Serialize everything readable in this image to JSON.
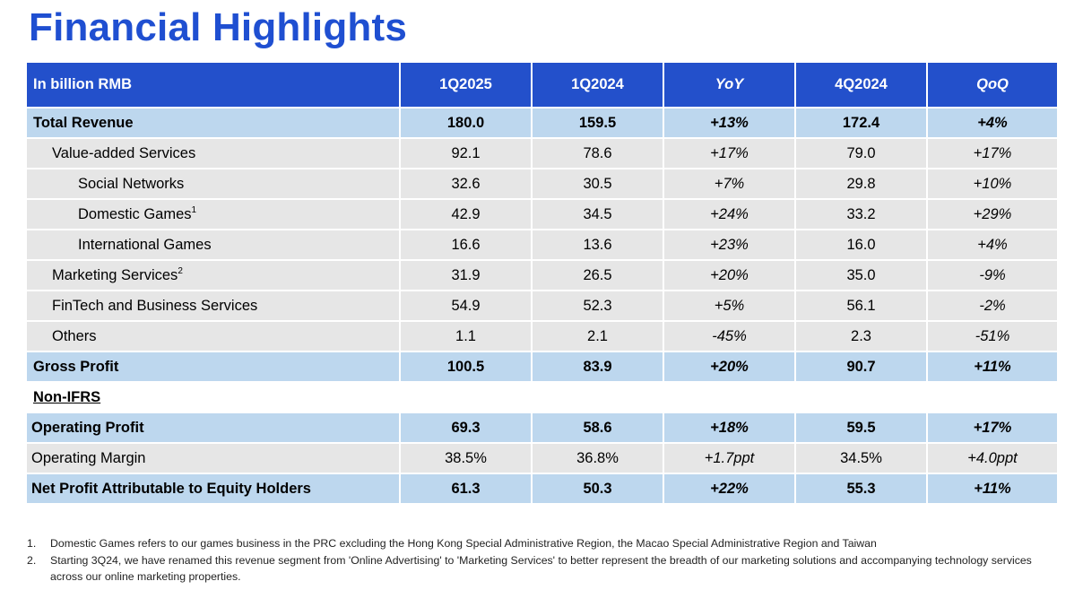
{
  "title": "Financial Highlights",
  "table": {
    "headers": [
      "In billion RMB",
      "1Q2025",
      "1Q2024",
      "YoY",
      "4Q2024",
      "QoQ"
    ],
    "rows": [
      {
        "label": "Total Revenue",
        "sup": "",
        "values": [
          "180.0",
          "159.5",
          "+13%",
          "172.4",
          "+4%"
        ]
      },
      {
        "label": "Value-added Services",
        "sup": "",
        "values": [
          "92.1",
          "78.6",
          "+17%",
          "79.0",
          "+17%"
        ]
      },
      {
        "label": "Social Networks",
        "sup": "",
        "values": [
          "32.6",
          "30.5",
          "+7%",
          "29.8",
          "+10%"
        ]
      },
      {
        "label": "Domestic Games",
        "sup": "1",
        "values": [
          "42.9",
          "34.5",
          "+24%",
          "33.2",
          "+29%"
        ]
      },
      {
        "label": "International Games",
        "sup": "",
        "values": [
          "16.6",
          "13.6",
          "+23%",
          "16.0",
          "+4%"
        ]
      },
      {
        "label": "Marketing Services",
        "sup": "2",
        "values": [
          "31.9",
          "26.5",
          "+20%",
          "35.0",
          "-9%"
        ]
      },
      {
        "label": "FinTech and Business Services",
        "sup": "",
        "values": [
          "54.9",
          "52.3",
          "+5%",
          "56.1",
          "-2%"
        ]
      },
      {
        "label": "Others",
        "sup": "",
        "values": [
          "1.1",
          "2.1",
          "-45%",
          "2.3",
          "-51%"
        ]
      },
      {
        "label": "Gross Profit",
        "sup": "",
        "values": [
          "100.5",
          "83.9",
          "+20%",
          "90.7",
          "+11%"
        ]
      }
    ],
    "section_label": "Non-IFRS",
    "non_ifrs_rows": [
      {
        "label": "Operating Profit",
        "values": [
          "69.3",
          "58.6",
          "+18%",
          "59.5",
          "+17%"
        ]
      },
      {
        "label": "Operating Margin",
        "values": [
          "38.5%",
          "36.8%",
          "+1.7ppt",
          "34.5%",
          "+4.0ppt"
        ]
      },
      {
        "label": "Net Profit Attributable to Equity Holders",
        "values": [
          "61.3",
          "50.3",
          "+22%",
          "55.3",
          "+11%"
        ]
      }
    ]
  },
  "footnotes": [
    {
      "num": "1.",
      "text": "Domestic Games refers to our games business in the PRC excluding the Hong Kong Special Administrative Region, the Macao Special Administrative Region and Taiwan"
    },
    {
      "num": "2.",
      "text": "Starting 3Q24, we have renamed this revenue segment from 'Online Advertising' to 'Marketing Services' to better represent the breadth of our marketing solutions and accompanying technology services across our online marketing properties."
    }
  ],
  "colors": {
    "title": "#1f4fd1",
    "header_bg": "#2350cb",
    "highlight_row": "#bdd7ee",
    "normal_row": "#e6e6e6"
  }
}
